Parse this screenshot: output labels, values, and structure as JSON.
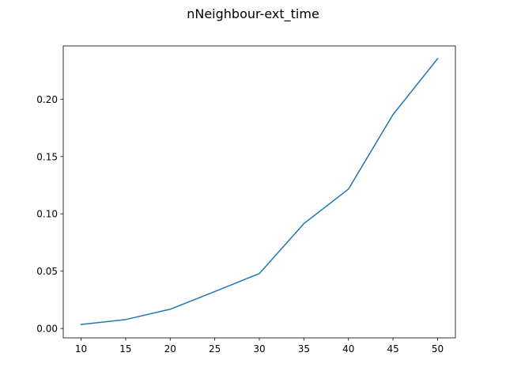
{
  "chart_data": {
    "type": "line",
    "title": "nNeighbour-ext_time",
    "xlabel": "",
    "ylabel": "",
    "xlim": [
      8,
      52
    ],
    "ylim": [
      -0.0082,
      0.2465
    ],
    "xticks": [
      10,
      15,
      20,
      25,
      30,
      35,
      40,
      45,
      50
    ],
    "yticks": [
      0.0,
      0.05,
      0.1,
      0.15,
      0.2
    ],
    "ytick_labels": [
      "0.00",
      "0.05",
      "0.10",
      "0.15",
      "0.20"
    ],
    "grid": false,
    "series": [
      {
        "color": "#1f77b4",
        "x": [
          10,
          15,
          20,
          25,
          30,
          35,
          40,
          45,
          50
        ],
        "y": [
          0.0035,
          0.0078,
          0.0168,
          0.0322,
          0.0479,
          0.0915,
          0.1216,
          0.1866,
          0.2353
        ]
      }
    ]
  }
}
